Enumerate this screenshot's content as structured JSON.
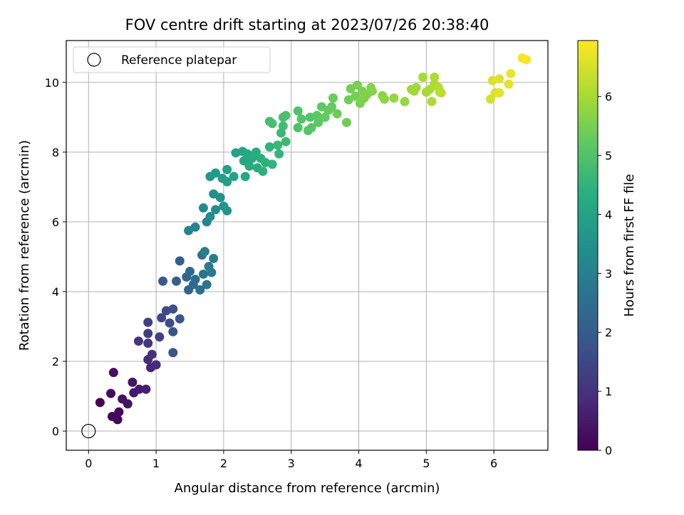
{
  "chart_data": {
    "type": "scatter",
    "title": "FOV centre drift starting at 2023/07/26 20:38:40",
    "xlabel": "Angular distance from reference (arcmin)",
    "ylabel": "Rotation from reference (arcmin)",
    "xlim": [
      -0.33,
      6.8
    ],
    "ylim": [
      -0.55,
      11.2
    ],
    "xticks": [
      0,
      1,
      2,
      3,
      4,
      5,
      6
    ],
    "yticks": [
      0,
      2,
      4,
      6,
      8,
      10
    ],
    "grid": true,
    "legend": {
      "placement": "top-left",
      "entries": [
        "Reference platepar"
      ]
    },
    "reference_point": {
      "x": 0,
      "y": 0,
      "label": "Reference platepar"
    },
    "colorbar": {
      "label": "Hours from first FF file",
      "range": [
        0,
        6.95
      ],
      "ticks": [
        0,
        1,
        2,
        3,
        4,
        5,
        6
      ],
      "colormap": "viridis"
    },
    "points": [
      {
        "x": 0.17,
        "y": 0.82,
        "h": 0.05
      },
      {
        "x": 0.43,
        "y": 0.33,
        "h": 0.12
      },
      {
        "x": 0.35,
        "y": 0.42,
        "h": 0.15
      },
      {
        "x": 0.45,
        "y": 0.55,
        "h": 0.18
      },
      {
        "x": 0.33,
        "y": 1.08,
        "h": 0.22
      },
      {
        "x": 0.37,
        "y": 1.68,
        "h": 0.25
      },
      {
        "x": 0.5,
        "y": 0.92,
        "h": 0.3
      },
      {
        "x": 0.58,
        "y": 0.78,
        "h": 0.35
      },
      {
        "x": 0.65,
        "y": 1.4,
        "h": 0.42
      },
      {
        "x": 0.67,
        "y": 1.1,
        "h": 0.48
      },
      {
        "x": 0.75,
        "y": 1.2,
        "h": 0.55
      },
      {
        "x": 0.85,
        "y": 1.2,
        "h": 0.62
      },
      {
        "x": 0.92,
        "y": 1.82,
        "h": 0.75
      },
      {
        "x": 0.88,
        "y": 2.05,
        "h": 0.82
      },
      {
        "x": 1.0,
        "y": 1.9,
        "h": 0.9
      },
      {
        "x": 0.94,
        "y": 2.2,
        "h": 0.98
      },
      {
        "x": 0.74,
        "y": 2.58,
        "h": 1.05
      },
      {
        "x": 0.88,
        "y": 2.52,
        "h": 1.1
      },
      {
        "x": 0.88,
        "y": 2.8,
        "h": 1.2
      },
      {
        "x": 0.88,
        "y": 3.12,
        "h": 1.28
      },
      {
        "x": 1.05,
        "y": 2.7,
        "h": 1.35
      },
      {
        "x": 1.08,
        "y": 3.25,
        "h": 1.45
      },
      {
        "x": 1.15,
        "y": 3.45,
        "h": 1.55
      },
      {
        "x": 1.2,
        "y": 3.1,
        "h": 1.62
      },
      {
        "x": 1.25,
        "y": 3.5,
        "h": 1.7
      },
      {
        "x": 1.25,
        "y": 2.85,
        "h": 1.78
      },
      {
        "x": 1.25,
        "y": 2.25,
        "h": 1.85
      },
      {
        "x": 1.35,
        "y": 3.22,
        "h": 1.9
      },
      {
        "x": 1.1,
        "y": 4.3,
        "h": 1.98
      },
      {
        "x": 1.3,
        "y": 4.3,
        "h": 2.05
      },
      {
        "x": 1.35,
        "y": 4.88,
        "h": 2.1
      },
      {
        "x": 1.45,
        "y": 4.42,
        "h": 2.18
      },
      {
        "x": 1.48,
        "y": 4.05,
        "h": 2.25
      },
      {
        "x": 1.5,
        "y": 4.58,
        "h": 2.32
      },
      {
        "x": 1.55,
        "y": 4.2,
        "h": 2.4
      },
      {
        "x": 1.58,
        "y": 4.35,
        "h": 2.45
      },
      {
        "x": 1.65,
        "y": 4.05,
        "h": 2.5
      },
      {
        "x": 1.68,
        "y": 5.05,
        "h": 2.58
      },
      {
        "x": 1.7,
        "y": 4.5,
        "h": 2.65
      },
      {
        "x": 1.75,
        "y": 4.2,
        "h": 2.72
      },
      {
        "x": 1.78,
        "y": 4.72,
        "h": 2.8
      },
      {
        "x": 1.82,
        "y": 4.55,
        "h": 2.85
      },
      {
        "x": 1.85,
        "y": 4.95,
        "h": 2.9
      },
      {
        "x": 1.72,
        "y": 5.15,
        "h": 2.98
      },
      {
        "x": 1.48,
        "y": 5.75,
        "h": 3.05
      },
      {
        "x": 1.58,
        "y": 5.85,
        "h": 3.12
      },
      {
        "x": 1.75,
        "y": 6.0,
        "h": 3.2
      },
      {
        "x": 1.7,
        "y": 6.4,
        "h": 3.25
      },
      {
        "x": 1.8,
        "y": 6.15,
        "h": 3.3
      },
      {
        "x": 1.88,
        "y": 6.35,
        "h": 3.38
      },
      {
        "x": 1.85,
        "y": 6.8,
        "h": 3.45
      },
      {
        "x": 1.95,
        "y": 6.7,
        "h": 3.5
      },
      {
        "x": 2.0,
        "y": 6.45,
        "h": 3.55
      },
      {
        "x": 2.05,
        "y": 6.32,
        "h": 3.6
      },
      {
        "x": 1.8,
        "y": 7.3,
        "h": 3.68
      },
      {
        "x": 1.88,
        "y": 7.4,
        "h": 3.75
      },
      {
        "x": 1.98,
        "y": 7.25,
        "h": 3.8
      },
      {
        "x": 2.05,
        "y": 7.5,
        "h": 3.85
      },
      {
        "x": 2.05,
        "y": 7.15,
        "h": 3.9
      },
      {
        "x": 2.15,
        "y": 7.3,
        "h": 3.95
      },
      {
        "x": 2.18,
        "y": 7.98,
        "h": 4.0
      },
      {
        "x": 2.28,
        "y": 8.02,
        "h": 4.05
      },
      {
        "x": 2.3,
        "y": 7.75,
        "h": 4.1
      },
      {
        "x": 2.32,
        "y": 7.3,
        "h": 4.12
      },
      {
        "x": 2.35,
        "y": 7.95,
        "h": 4.15
      },
      {
        "x": 2.38,
        "y": 7.6,
        "h": 4.2
      },
      {
        "x": 2.42,
        "y": 7.82,
        "h": 4.22
      },
      {
        "x": 2.45,
        "y": 7.92,
        "h": 4.25
      },
      {
        "x": 2.48,
        "y": 8.0,
        "h": 4.3
      },
      {
        "x": 2.5,
        "y": 7.55,
        "h": 4.32
      },
      {
        "x": 2.55,
        "y": 7.82,
        "h": 4.35
      },
      {
        "x": 2.58,
        "y": 7.45,
        "h": 4.4
      },
      {
        "x": 2.62,
        "y": 7.7,
        "h": 4.42
      },
      {
        "x": 2.68,
        "y": 8.15,
        "h": 4.45
      },
      {
        "x": 2.72,
        "y": 7.65,
        "h": 4.5
      },
      {
        "x": 2.82,
        "y": 7.95,
        "h": 4.55
      },
      {
        "x": 2.8,
        "y": 8.2,
        "h": 4.6
      },
      {
        "x": 2.85,
        "y": 8.55,
        "h": 4.65
      },
      {
        "x": 2.92,
        "y": 8.3,
        "h": 4.7
      },
      {
        "x": 2.88,
        "y": 8.75,
        "h": 4.75
      },
      {
        "x": 2.68,
        "y": 8.88,
        "h": 4.8
      },
      {
        "x": 2.72,
        "y": 8.82,
        "h": 4.85
      },
      {
        "x": 2.88,
        "y": 9.0,
        "h": 4.9
      },
      {
        "x": 2.92,
        "y": 9.05,
        "h": 4.92
      },
      {
        "x": 3.1,
        "y": 8.7,
        "h": 4.95
      },
      {
        "x": 3.1,
        "y": 9.18,
        "h": 5.0
      },
      {
        "x": 3.15,
        "y": 8.95,
        "h": 5.02
      },
      {
        "x": 3.25,
        "y": 8.62,
        "h": 5.05
      },
      {
        "x": 3.28,
        "y": 9.0,
        "h": 5.08
      },
      {
        "x": 3.3,
        "y": 8.7,
        "h": 5.12
      },
      {
        "x": 3.4,
        "y": 8.85,
        "h": 5.15
      },
      {
        "x": 3.38,
        "y": 9.05,
        "h": 5.18
      },
      {
        "x": 3.45,
        "y": 9.3,
        "h": 5.2
      },
      {
        "x": 3.5,
        "y": 9.0,
        "h": 5.25
      },
      {
        "x": 3.55,
        "y": 9.2,
        "h": 5.28
      },
      {
        "x": 3.6,
        "y": 9.3,
        "h": 5.3
      },
      {
        "x": 3.62,
        "y": 9.55,
        "h": 5.32
      },
      {
        "x": 3.68,
        "y": 9.1,
        "h": 5.35
      },
      {
        "x": 3.82,
        "y": 8.85,
        "h": 5.38
      },
      {
        "x": 3.85,
        "y": 9.5,
        "h": 5.4
      },
      {
        "x": 3.88,
        "y": 9.82,
        "h": 5.45
      },
      {
        "x": 3.95,
        "y": 9.6,
        "h": 5.48
      },
      {
        "x": 3.98,
        "y": 9.92,
        "h": 5.5
      },
      {
        "x": 4.02,
        "y": 9.4,
        "h": 5.52
      },
      {
        "x": 4.05,
        "y": 9.75,
        "h": 5.55
      },
      {
        "x": 4.08,
        "y": 9.55,
        "h": 5.58
      },
      {
        "x": 4.12,
        "y": 9.65,
        "h": 5.6
      },
      {
        "x": 4.2,
        "y": 9.75,
        "h": 5.65
      },
      {
        "x": 4.18,
        "y": 9.85,
        "h": 5.68
      },
      {
        "x": 4.35,
        "y": 9.62,
        "h": 5.72
      },
      {
        "x": 4.38,
        "y": 9.52,
        "h": 5.75
      },
      {
        "x": 4.52,
        "y": 9.55,
        "h": 5.8
      },
      {
        "x": 4.68,
        "y": 9.45,
        "h": 5.85
      },
      {
        "x": 4.78,
        "y": 9.8,
        "h": 5.9
      },
      {
        "x": 4.82,
        "y": 9.75,
        "h": 5.93
      },
      {
        "x": 4.85,
        "y": 9.85,
        "h": 5.95
      },
      {
        "x": 4.95,
        "y": 10.15,
        "h": 6.0
      },
      {
        "x": 5.0,
        "y": 9.72,
        "h": 6.02
      },
      {
        "x": 5.05,
        "y": 9.8,
        "h": 6.05
      },
      {
        "x": 5.08,
        "y": 9.45,
        "h": 6.08
      },
      {
        "x": 5.12,
        "y": 9.95,
        "h": 6.1
      },
      {
        "x": 5.12,
        "y": 10.15,
        "h": 6.12
      },
      {
        "x": 5.18,
        "y": 9.85,
        "h": 6.15
      },
      {
        "x": 5.2,
        "y": 9.72,
        "h": 6.18
      },
      {
        "x": 5.22,
        "y": 9.7,
        "h": 6.2
      },
      {
        "x": 5.95,
        "y": 9.52,
        "h": 6.5
      },
      {
        "x": 5.98,
        "y": 10.05,
        "h": 6.55
      },
      {
        "x": 6.02,
        "y": 9.7,
        "h": 6.58
      },
      {
        "x": 6.08,
        "y": 10.1,
        "h": 6.62
      },
      {
        "x": 6.08,
        "y": 9.7,
        "h": 6.65
      },
      {
        "x": 6.22,
        "y": 9.95,
        "h": 6.7
      },
      {
        "x": 6.25,
        "y": 10.25,
        "h": 6.75
      },
      {
        "x": 6.42,
        "y": 10.7,
        "h": 6.85
      },
      {
        "x": 6.48,
        "y": 10.65,
        "h": 6.9
      }
    ]
  }
}
